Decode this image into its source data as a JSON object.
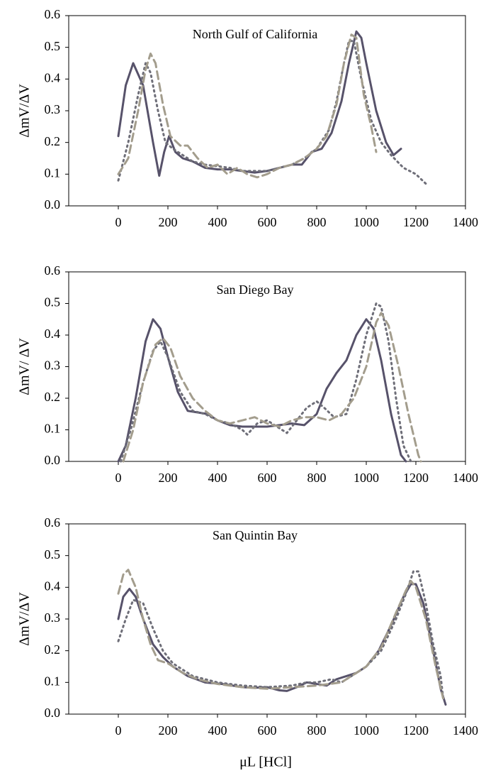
{
  "chart_data": [
    {
      "type": "line",
      "title": "North Gulf of California",
      "ylabel": "ΔmV/ΔV",
      "xlim": [
        -200,
        1400
      ],
      "xticks": [
        0,
        200,
        400,
        600,
        800,
        1000,
        1200,
        1400
      ],
      "ylim": [
        0,
        0.6
      ],
      "yticks": [
        {
          "value": 0,
          "label": "0.0"
        },
        0.1,
        0.2,
        0.3,
        0.4,
        0.5,
        0.6
      ],
      "series": [
        {
          "color": "#57526a",
          "dash": "solid",
          "x": [
            0,
            30,
            60,
            100,
            140,
            165,
            185,
            205,
            230,
            260,
            300,
            350,
            400,
            450,
            500,
            550,
            600,
            650,
            700,
            740,
            780,
            820,
            860,
            900,
            930,
            960,
            980,
            1000,
            1040,
            1080,
            1110,
            1140
          ],
          "values": [
            0.22,
            0.38,
            0.45,
            0.38,
            0.2,
            0.095,
            0.17,
            0.22,
            0.17,
            0.15,
            0.14,
            0.12,
            0.115,
            0.115,
            0.11,
            0.105,
            0.11,
            0.12,
            0.13,
            0.13,
            0.17,
            0.18,
            0.23,
            0.33,
            0.45,
            0.55,
            0.53,
            0.45,
            0.3,
            0.2,
            0.16,
            0.18
          ]
        },
        {
          "color": "#6e6e78",
          "dash": "dotted",
          "x": [
            0,
            40,
            80,
            110,
            130,
            160,
            190,
            220,
            260,
            300,
            350,
            400,
            450,
            500,
            550,
            600,
            650,
            700,
            750,
            800,
            850,
            880,
            910,
            930,
            950,
            980,
            1020,
            1060,
            1100,
            1150,
            1200,
            1240
          ],
          "values": [
            0.08,
            0.2,
            0.35,
            0.45,
            0.42,
            0.3,
            0.2,
            0.18,
            0.16,
            0.14,
            0.13,
            0.125,
            0.12,
            0.11,
            0.11,
            0.11,
            0.12,
            0.13,
            0.15,
            0.18,
            0.24,
            0.33,
            0.45,
            0.52,
            0.52,
            0.4,
            0.27,
            0.2,
            0.16,
            0.12,
            0.1,
            0.07
          ]
        },
        {
          "color": "#a39d8d",
          "dash": "dashed",
          "x": [
            0,
            40,
            80,
            110,
            130,
            150,
            180,
            210,
            250,
            280,
            320,
            360,
            400,
            440,
            480,
            520,
            560,
            600,
            650,
            700,
            750,
            800,
            840,
            880,
            910,
            940,
            960,
            990,
            1020,
            1040
          ],
          "values": [
            0.1,
            0.15,
            0.3,
            0.43,
            0.48,
            0.45,
            0.32,
            0.22,
            0.19,
            0.19,
            0.15,
            0.12,
            0.13,
            0.1,
            0.12,
            0.1,
            0.09,
            0.1,
            0.12,
            0.13,
            0.15,
            0.18,
            0.22,
            0.32,
            0.45,
            0.54,
            0.53,
            0.35,
            0.25,
            0.17
          ]
        }
      ]
    },
    {
      "type": "line",
      "title": "San Diego Bay",
      "ylabel": "ΔmV/ ΔV",
      "xlim": [
        -200,
        1400
      ],
      "xticks": [
        0,
        200,
        400,
        600,
        800,
        1000,
        1200,
        1400
      ],
      "ylim": [
        0,
        0.6
      ],
      "yticks": [
        {
          "value": 0,
          "label": "0.0"
        },
        0.1,
        0.2,
        0.3,
        0.4,
        0.5,
        0.6
      ],
      "series": [
        {
          "color": "#57526a",
          "dash": "solid",
          "x": [
            0,
            30,
            70,
            110,
            140,
            170,
            200,
            240,
            280,
            320,
            360,
            400,
            450,
            500,
            550,
            600,
            650,
            700,
            750,
            800,
            840,
            880,
            920,
            960,
            1000,
            1030,
            1060,
            1100,
            1140,
            1160
          ],
          "values": [
            0,
            0.05,
            0.2,
            0.38,
            0.45,
            0.42,
            0.33,
            0.22,
            0.16,
            0.155,
            0.15,
            0.13,
            0.115,
            0.11,
            0.11,
            0.11,
            0.115,
            0.12,
            0.115,
            0.15,
            0.23,
            0.28,
            0.32,
            0.4,
            0.45,
            0.42,
            0.32,
            0.15,
            0.02,
            0
          ]
        },
        {
          "color": "#6e6e78",
          "dash": "dotted",
          "x": [
            10,
            50,
            100,
            140,
            170,
            200,
            250,
            300,
            350,
            400,
            450,
            500,
            520,
            560,
            600,
            640,
            680,
            720,
            760,
            800,
            830,
            870,
            920,
            960,
            1000,
            1040,
            1060,
            1090,
            1120,
            1150,
            1180
          ],
          "values": [
            0,
            0.1,
            0.25,
            0.35,
            0.38,
            0.33,
            0.22,
            0.16,
            0.15,
            0.13,
            0.12,
            0.1,
            0.085,
            0.12,
            0.13,
            0.11,
            0.09,
            0.13,
            0.17,
            0.19,
            0.17,
            0.14,
            0.15,
            0.26,
            0.4,
            0.5,
            0.49,
            0.38,
            0.2,
            0.05,
            0
          ]
        },
        {
          "color": "#a39d8d",
          "dash": "dashed",
          "x": [
            20,
            60,
            100,
            150,
            180,
            210,
            250,
            300,
            350,
            400,
            450,
            500,
            550,
            600,
            650,
            700,
            750,
            800,
            850,
            900,
            950,
            1000,
            1040,
            1060,
            1090,
            1130,
            1170,
            1210,
            1220
          ],
          "values": [
            0,
            0.1,
            0.25,
            0.37,
            0.39,
            0.36,
            0.27,
            0.2,
            0.16,
            0.13,
            0.12,
            0.13,
            0.14,
            0.12,
            0.11,
            0.13,
            0.14,
            0.14,
            0.13,
            0.15,
            0.2,
            0.3,
            0.44,
            0.47,
            0.43,
            0.3,
            0.15,
            0.02,
            0
          ]
        }
      ]
    },
    {
      "type": "line",
      "title": "San Quintin Bay",
      "ylabel": "ΔmV/ΔV",
      "xlabel": "μL [HCl]",
      "xlim": [
        -200,
        1400
      ],
      "xticks": [
        0,
        200,
        400,
        600,
        800,
        1000,
        1200,
        1400
      ],
      "ylim": [
        0,
        0.6
      ],
      "yticks": [
        {
          "value": 0,
          "label": "0.0"
        },
        0.1,
        0.2,
        0.3,
        0.4,
        0.5,
        0.6
      ],
      "series": [
        {
          "color": "#57526a",
          "dash": "solid",
          "x": [
            0,
            20,
            45,
            70,
            100,
            140,
            180,
            220,
            280,
            350,
            420,
            500,
            550,
            600,
            650,
            680,
            720,
            760,
            800,
            840,
            880,
            920,
            960,
            1000,
            1050,
            1100,
            1150,
            1180,
            1200,
            1230,
            1270,
            1300,
            1320
          ],
          "values": [
            0.3,
            0.37,
            0.395,
            0.37,
            0.3,
            0.22,
            0.18,
            0.15,
            0.12,
            0.1,
            0.095,
            0.085,
            0.083,
            0.085,
            0.075,
            0.073,
            0.085,
            0.1,
            0.095,
            0.09,
            0.11,
            0.12,
            0.13,
            0.15,
            0.2,
            0.28,
            0.37,
            0.41,
            0.41,
            0.35,
            0.2,
            0.08,
            0.03
          ]
        },
        {
          "color": "#6e6e78",
          "dash": "dotted",
          "x": [
            0,
            30,
            60,
            100,
            140,
            180,
            220,
            300,
            400,
            500,
            600,
            700,
            760,
            800,
            860,
            900,
            960,
            1000,
            1060,
            1120,
            1160,
            1190,
            1210,
            1240,
            1270,
            1300,
            1310
          ],
          "values": [
            0.23,
            0.3,
            0.36,
            0.35,
            0.27,
            0.2,
            0.16,
            0.12,
            0.1,
            0.09,
            0.085,
            0.09,
            0.1,
            0.1,
            0.11,
            0.1,
            0.13,
            0.15,
            0.2,
            0.3,
            0.38,
            0.45,
            0.45,
            0.35,
            0.22,
            0.12,
            0.05
          ]
        },
        {
          "color": "#a39d8d",
          "dash": "dashed",
          "x": [
            0,
            20,
            40,
            70,
            100,
            130,
            160,
            200,
            260,
            320,
            400,
            500,
            600,
            700,
            800,
            900,
            960,
            1000,
            1060,
            1120,
            1160,
            1180,
            1200,
            1240,
            1280,
            1310
          ],
          "values": [
            0.38,
            0.44,
            0.455,
            0.4,
            0.3,
            0.22,
            0.17,
            0.16,
            0.13,
            0.11,
            0.095,
            0.085,
            0.08,
            0.085,
            0.09,
            0.1,
            0.13,
            0.15,
            0.21,
            0.32,
            0.39,
            0.42,
            0.4,
            0.3,
            0.15,
            0.05
          ]
        }
      ]
    }
  ]
}
